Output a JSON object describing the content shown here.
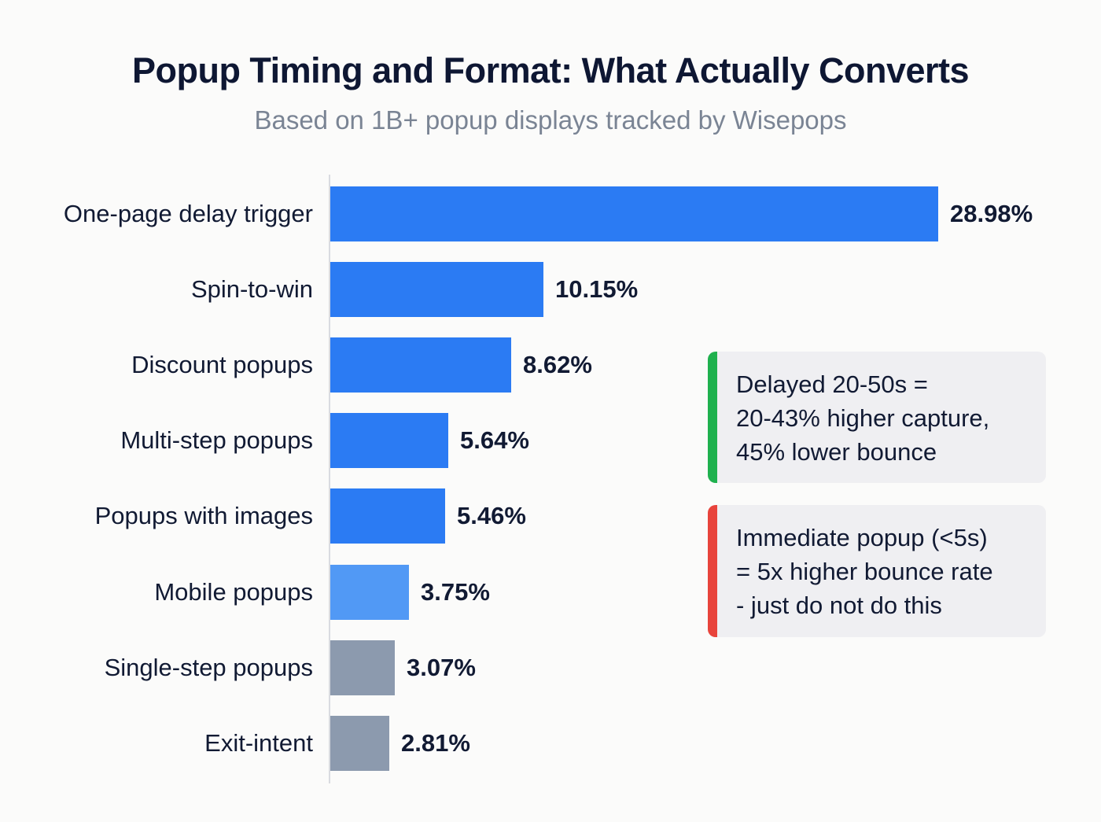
{
  "header": {
    "title": "Popup Timing and Format: What Actually Converts",
    "subtitle": "Based on 1B+ popup displays tracked by Wisepops"
  },
  "colors": {
    "primary_blue": "#2b7bf3",
    "light_blue": "#5199f5",
    "gray": "#8c9aae",
    "positive_accent": "#1fb14e",
    "negative_accent": "#e8443c",
    "note_background": "#efeff2"
  },
  "rows": [
    {
      "label": "One-page delay trigger",
      "value": 28.98,
      "display": "28.98%",
      "color": "#2b7bf3"
    },
    {
      "label": "Spin-to-win",
      "value": 10.15,
      "display": "10.15%",
      "color": "#2b7bf3"
    },
    {
      "label": "Discount popups",
      "value": 8.62,
      "display": "8.62%",
      "color": "#2b7bf3"
    },
    {
      "label": "Multi-step popups",
      "value": 5.64,
      "display": "5.64%",
      "color": "#2b7bf3"
    },
    {
      "label": "Popups with images",
      "value": 5.46,
      "display": "5.46%",
      "color": "#2b7bf3"
    },
    {
      "label": "Mobile popups",
      "value": 3.75,
      "display": "3.75%",
      "color": "#5199f5"
    },
    {
      "label": "Single-step popups",
      "value": 3.07,
      "display": "3.07%",
      "color": "#8c9aae"
    },
    {
      "label": "Exit-intent",
      "value": 2.81,
      "display": "2.81%",
      "color": "#8c9aae"
    }
  ],
  "notes": [
    {
      "type": "positive",
      "accent": "#1fb14e",
      "lines": [
        "Delayed 20-50s =",
        "20-43% higher capture,",
        "45% lower bounce"
      ]
    },
    {
      "type": "negative",
      "accent": "#e8443c",
      "lines": [
        "Immediate popup (<5s)",
        "= 5x higher bounce rate",
        "- just do not do this"
      ]
    }
  ],
  "chart_data": {
    "type": "bar",
    "orientation": "horizontal",
    "title": "Popup Timing and Format: What Actually Converts",
    "subtitle": "Based on 1B+ popup displays tracked by Wisepops",
    "categories": [
      "One-page delay trigger",
      "Spin-to-win",
      "Discount popups",
      "Multi-step popups",
      "Popups with images",
      "Mobile popups",
      "Single-step popups",
      "Exit-intent"
    ],
    "values": [
      28.98,
      10.15,
      8.62,
      5.64,
      5.46,
      3.75,
      3.07,
      2.81
    ],
    "value_labels": [
      "28.98%",
      "10.15%",
      "8.62%",
      "5.64%",
      "5.46%",
      "3.75%",
      "3.07%",
      "2.81%"
    ],
    "bar_colors": [
      "#2b7bf3",
      "#2b7bf3",
      "#2b7bf3",
      "#2b7bf3",
      "#2b7bf3",
      "#5199f5",
      "#8c9aae",
      "#8c9aae"
    ],
    "xlabel": "",
    "ylabel": "",
    "unit": "%",
    "grid": false,
    "legend": null,
    "annotations": [
      "Delayed 20-50s = 20-43% higher capture, 45% lower bounce",
      "Immediate popup (<5s) = 5x higher bounce rate - just do not do this"
    ]
  }
}
